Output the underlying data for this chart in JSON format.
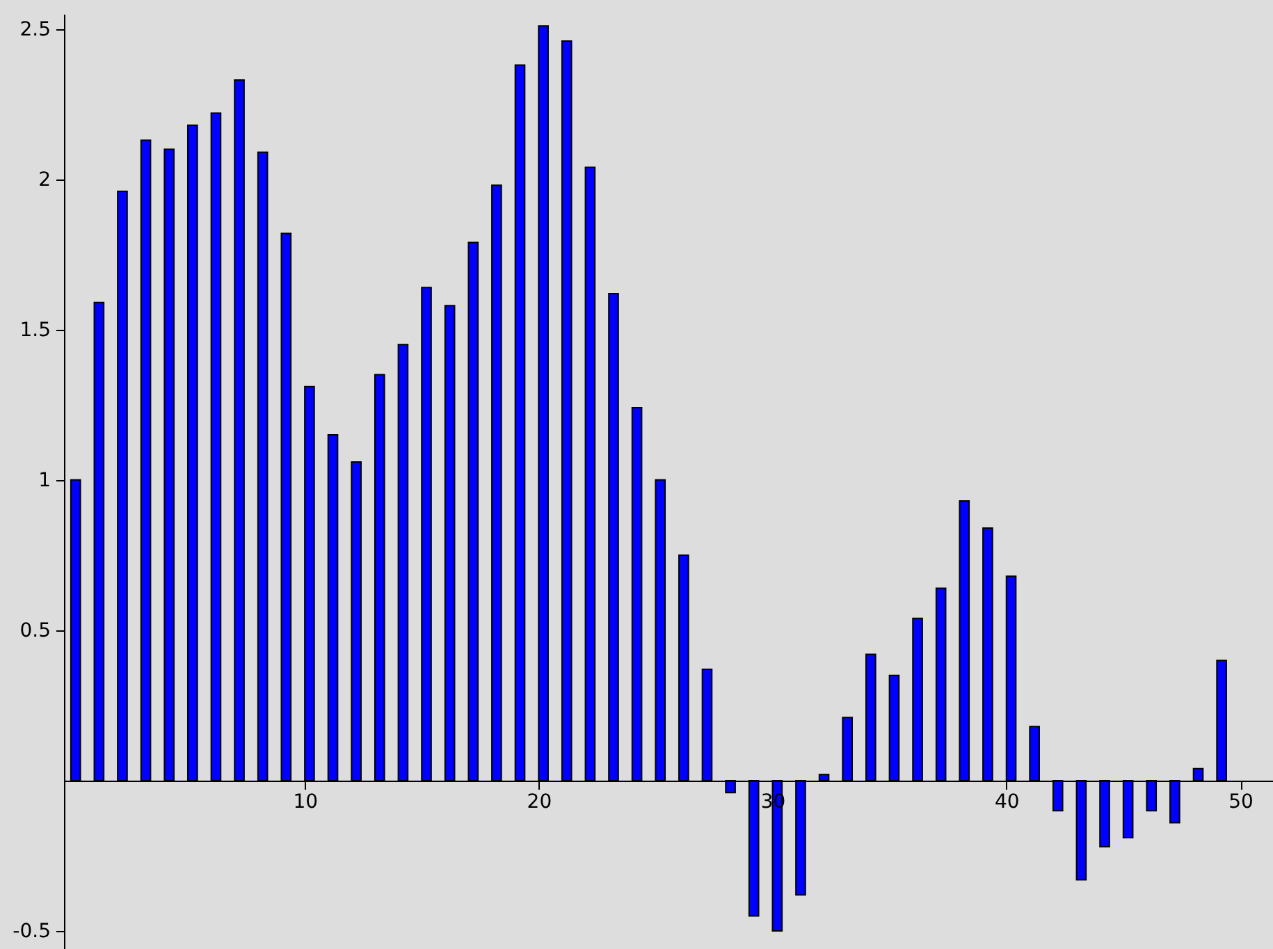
{
  "chart_data": {
    "type": "bar",
    "x": [
      0.2,
      1.2,
      2.2,
      3.2,
      4.2,
      5.2,
      6.2,
      7.2,
      8.2,
      9.2,
      10.2,
      11.2,
      12.2,
      13.2,
      14.2,
      15.2,
      16.2,
      17.2,
      18.2,
      19.2,
      20.2,
      21.2,
      22.2,
      23.2,
      24.2,
      25.2,
      26.2,
      27.2,
      28.2,
      29.2,
      30.2,
      31.2,
      32.2,
      33.2,
      34.2,
      35.2,
      36.2,
      37.2,
      38.2,
      39.2,
      40.2,
      41.2,
      42.2,
      43.2,
      44.2,
      45.2,
      46.2,
      47.2,
      48.2,
      49.2
    ],
    "values": [
      1.0,
      1.59,
      1.96,
      2.13,
      2.1,
      2.18,
      2.22,
      2.33,
      2.09,
      1.82,
      1.31,
      1.15,
      1.06,
      1.35,
      1.45,
      1.64,
      1.58,
      1.79,
      1.98,
      2.38,
      2.51,
      2.46,
      2.04,
      1.62,
      1.24,
      1.0,
      0.75,
      0.37,
      -0.04,
      -0.45,
      -0.5,
      -0.38,
      0.02,
      0.21,
      0.42,
      0.35,
      0.54,
      0.64,
      0.93,
      0.84,
      0.68,
      0.18,
      -0.1,
      -0.33,
      -0.22,
      -0.19,
      -0.1,
      -0.14,
      0.04,
      0.4
    ],
    "color": "#0000ff",
    "xlim": [
      0,
      51.1
    ],
    "ylim": [
      -0.56,
      2.55
    ],
    "xticks": [
      10,
      20,
      30,
      40,
      50
    ],
    "yticks": [
      -0.5,
      0.5,
      1,
      1.5,
      2,
      2.5
    ]
  }
}
